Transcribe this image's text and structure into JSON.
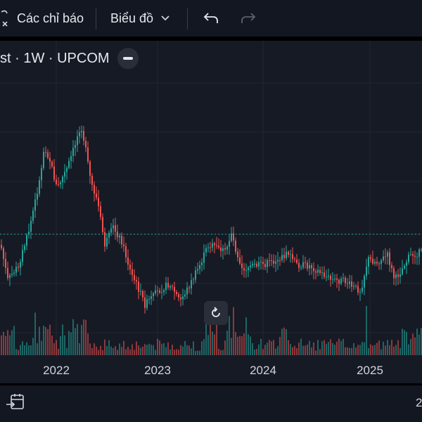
{
  "toolbar": {
    "indicators_label": "Các chỉ báo",
    "chart_type_label": "Biểu đồ"
  },
  "legend": {
    "symbol_text": "st · 1W · UPCOM"
  },
  "bottom": {
    "right_text": "2"
  },
  "chart_data": {
    "type": "candlestick",
    "interval": "1W",
    "exchange": "UPCOM",
    "x_ticks": [
      "2022",
      "2023",
      "2024",
      "2025"
    ],
    "grid": true,
    "price_line": "dotted horizontal current-price line",
    "volume_bars": true,
    "colors": {
      "up": "#26a69a",
      "down": "#ef5350",
      "grid": "#222631",
      "price_line": "#26a69a"
    }
  }
}
